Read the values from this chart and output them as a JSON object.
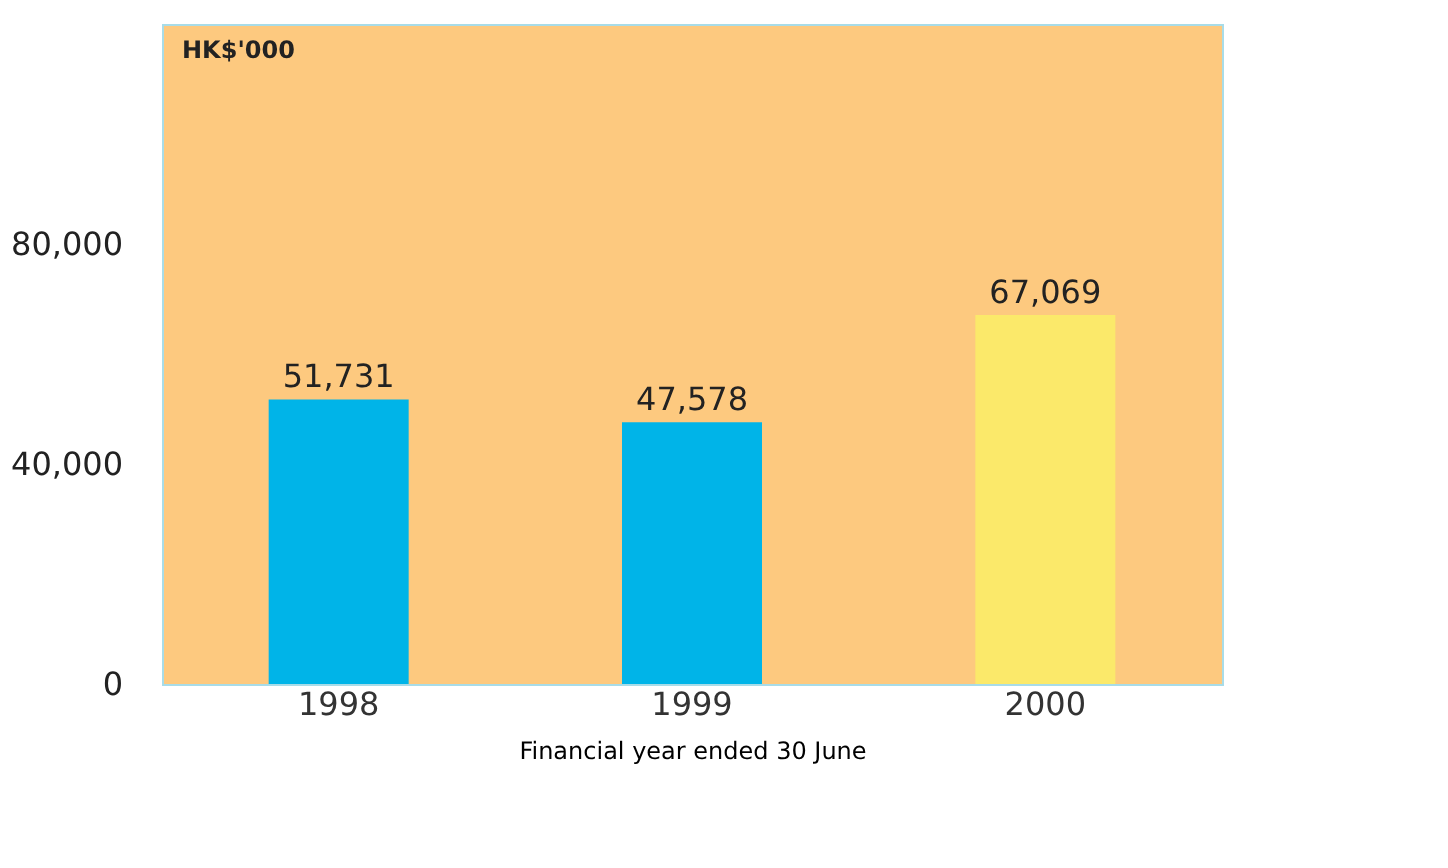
{
  "chart_data": {
    "type": "bar",
    "ylabel": "HK$'000",
    "xlabel": "Financial year ended 30 June",
    "categories": [
      "1998",
      "1999",
      "2000"
    ],
    "values": [
      51731,
      47578,
      67069
    ],
    "value_labels": [
      "51,731",
      "47,578",
      "67,069"
    ],
    "colors": [
      "#00b4e8",
      "#00b4e8",
      "#fbe96a"
    ],
    "ylim": [
      0,
      120000
    ],
    "yticks": [
      0,
      {
        "value": 40000,
        "label": "40,000"
      },
      {
        "value": 80000,
        "label": "80,000"
      }
    ],
    "grid": false
  }
}
